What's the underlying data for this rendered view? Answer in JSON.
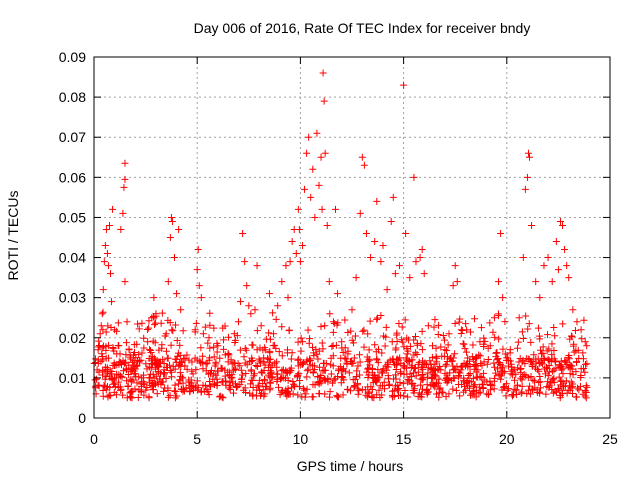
{
  "chart_data": {
    "type": "scatter",
    "title": "Day 006 of 2016, Rate Of TEC Index for receiver bndy",
    "xlabel": "GPS time / hours",
    "ylabel": "ROTI / TECUs",
    "xlim": [
      0,
      25
    ],
    "ylim": [
      0,
      0.09
    ],
    "x_ticks": [
      0,
      5,
      10,
      15,
      20,
      25
    ],
    "y_ticks": [
      0,
      0.01,
      0.02,
      0.03,
      0.04,
      0.05,
      0.06,
      0.07,
      0.08,
      0.09
    ],
    "x_tick_labels": [
      "0",
      "5",
      "10",
      "15",
      "20",
      "25"
    ],
    "y_tick_labels": [
      "0",
      "0.01",
      "0.02",
      "0.03",
      "0.04",
      "0.05",
      "0.06",
      "0.07",
      "0.08",
      "0.09"
    ],
    "grid": true,
    "marker": "+",
    "color": "#ff0000",
    "x_range_of_data": [
      0,
      23.9
    ],
    "baseline_roti_approx": [
      0.005,
      0.015
    ],
    "series": [
      {
        "name": "ROTI",
        "points": [
          [
            0.05,
            0.0095
          ],
          [
            0.1,
            0.006
          ],
          [
            0.15,
            0.012
          ],
          [
            0.2,
            0.017
          ],
          [
            0.25,
            0.008
          ],
          [
            0.3,
            0.021
          ],
          [
            0.35,
            0.023
          ],
          [
            0.4,
            0.026
          ],
          [
            0.45,
            0.032
          ],
          [
            0.5,
            0.039
          ],
          [
            0.55,
            0.043
          ],
          [
            0.6,
            0.047
          ],
          [
            0.65,
            0.041
          ],
          [
            0.7,
            0.038
          ],
          [
            0.75,
            0.048
          ],
          [
            0.8,
            0.036
          ],
          [
            0.85,
            0.029
          ],
          [
            0.9,
            0.052
          ],
          [
            1.0,
            0.022
          ],
          [
            1.1,
            0.016
          ],
          [
            1.2,
            0.018
          ],
          [
            1.3,
            0.047
          ],
          [
            1.4,
            0.051
          ],
          [
            1.5,
            0.034
          ],
          [
            1.45,
            0.0575
          ],
          [
            1.5,
            0.0595
          ],
          [
            1.5,
            0.0635
          ],
          [
            1.6,
            0.024
          ],
          [
            1.7,
            0.017
          ],
          [
            1.8,
            0.012
          ],
          [
            2.0,
            0.011
          ],
          [
            2.2,
            0.014
          ],
          [
            2.4,
            0.009
          ],
          [
            2.6,
            0.019
          ],
          [
            2.8,
            0.025
          ],
          [
            2.9,
            0.03
          ],
          [
            3.0,
            0.026
          ],
          [
            3.1,
            0.013
          ],
          [
            3.3,
            0.009
          ],
          [
            3.5,
            0.021
          ],
          [
            3.6,
            0.034
          ],
          [
            3.7,
            0.045
          ],
          [
            3.75,
            0.05
          ],
          [
            3.8,
            0.049
          ],
          [
            3.9,
            0.04
          ],
          [
            4.0,
            0.031
          ],
          [
            4.1,
            0.047
          ],
          [
            4.2,
            0.027
          ],
          [
            4.4,
            0.013
          ],
          [
            4.6,
            0.009
          ],
          [
            4.8,
            0.011
          ],
          [
            4.9,
            0.022
          ],
          [
            5.0,
            0.037
          ],
          [
            5.05,
            0.042
          ],
          [
            5.1,
            0.033
          ],
          [
            5.2,
            0.03
          ],
          [
            5.3,
            0.021
          ],
          [
            5.4,
            0.008
          ],
          [
            5.6,
            0.015
          ],
          [
            5.8,
            0.011
          ],
          [
            6.0,
            0.018
          ],
          [
            6.2,
            0.009
          ],
          [
            6.5,
            0.014
          ],
          [
            6.8,
            0.021
          ],
          [
            7.0,
            0.024
          ],
          [
            7.1,
            0.029
          ],
          [
            7.2,
            0.046
          ],
          [
            7.3,
            0.039
          ],
          [
            7.4,
            0.033
          ],
          [
            7.5,
            0.028
          ],
          [
            7.6,
            0.026
          ],
          [
            7.8,
            0.027
          ],
          [
            7.9,
            0.038
          ],
          [
            8.1,
            0.023
          ],
          [
            8.3,
            0.017
          ],
          [
            8.5,
            0.031
          ],
          [
            8.7,
            0.021
          ],
          [
            8.9,
            0.028
          ],
          [
            9.1,
            0.034
          ],
          [
            9.3,
            0.038
          ],
          [
            9.4,
            0.03
          ],
          [
            9.5,
            0.039
          ],
          [
            9.6,
            0.044
          ],
          [
            9.7,
            0.047
          ],
          [
            9.8,
            0.041
          ],
          [
            9.9,
            0.052
          ],
          [
            9.95,
            0.047
          ],
          [
            10.0,
            0.039
          ],
          [
            10.1,
            0.043
          ],
          [
            10.2,
            0.057
          ],
          [
            10.3,
            0.066
          ],
          [
            10.4,
            0.07
          ],
          [
            10.5,
            0.055
          ],
          [
            10.6,
            0.062
          ],
          [
            10.7,
            0.05
          ],
          [
            10.8,
            0.071
          ],
          [
            10.9,
            0.058
          ],
          [
            11.0,
            0.065
          ],
          [
            11.05,
            0.052
          ],
          [
            11.1,
            0.086
          ],
          [
            11.15,
            0.079
          ],
          [
            11.2,
            0.066
          ],
          [
            11.3,
            0.048
          ],
          [
            11.4,
            0.034
          ],
          [
            11.6,
            0.024
          ],
          [
            11.7,
            0.052
          ],
          [
            11.8,
            0.031
          ],
          [
            12.0,
            0.019
          ],
          [
            12.3,
            0.016
          ],
          [
            12.5,
            0.027
          ],
          [
            12.7,
            0.035
          ],
          [
            12.9,
            0.051
          ],
          [
            13.0,
            0.065
          ],
          [
            13.1,
            0.063
          ],
          [
            13.2,
            0.046
          ],
          [
            13.4,
            0.04
          ],
          [
            13.6,
            0.044
          ],
          [
            13.7,
            0.054
          ],
          [
            13.9,
            0.039
          ],
          [
            14.0,
            0.043
          ],
          [
            14.2,
            0.032
          ],
          [
            14.4,
            0.049
          ],
          [
            14.5,
            0.055
          ],
          [
            14.6,
            0.036
          ],
          [
            14.8,
            0.038
          ],
          [
            15.0,
            0.083
          ],
          [
            15.1,
            0.046
          ],
          [
            15.3,
            0.035
          ],
          [
            15.5,
            0.06
          ],
          [
            15.6,
            0.039
          ],
          [
            15.8,
            0.04
          ],
          [
            15.9,
            0.042
          ],
          [
            16.0,
            0.036
          ],
          [
            16.2,
            0.023
          ],
          [
            16.4,
            0.018
          ],
          [
            16.6,
            0.014
          ],
          [
            16.8,
            0.012
          ],
          [
            17.0,
            0.017
          ],
          [
            17.2,
            0.021
          ],
          [
            17.4,
            0.033
          ],
          [
            17.5,
            0.038
          ],
          [
            17.6,
            0.034
          ],
          [
            17.8,
            0.022
          ],
          [
            18.0,
            0.013
          ],
          [
            18.3,
            0.009
          ],
          [
            18.6,
            0.012
          ],
          [
            18.9,
            0.014
          ],
          [
            19.2,
            0.018
          ],
          [
            19.4,
            0.025
          ],
          [
            19.6,
            0.034
          ],
          [
            19.7,
            0.046
          ],
          [
            19.8,
            0.03
          ],
          [
            20.0,
            0.015
          ],
          [
            20.3,
            0.012
          ],
          [
            20.6,
            0.025
          ],
          [
            20.8,
            0.04
          ],
          [
            20.9,
            0.057
          ],
          [
            21.0,
            0.06
          ],
          [
            21.05,
            0.066
          ],
          [
            21.1,
            0.065
          ],
          [
            21.2,
            0.048
          ],
          [
            21.4,
            0.034
          ],
          [
            21.6,
            0.03
          ],
          [
            21.8,
            0.038
          ],
          [
            22.0,
            0.04
          ],
          [
            22.2,
            0.034
          ],
          [
            22.4,
            0.044
          ],
          [
            22.5,
            0.037
          ],
          [
            22.6,
            0.049
          ],
          [
            22.7,
            0.048
          ],
          [
            22.8,
            0.042
          ],
          [
            22.9,
            0.038
          ],
          [
            23.0,
            0.035
          ],
          [
            23.2,
            0.027
          ],
          [
            23.4,
            0.024
          ],
          [
            23.6,
            0.022
          ],
          [
            23.8,
            0.019
          ]
        ]
      }
    ]
  }
}
